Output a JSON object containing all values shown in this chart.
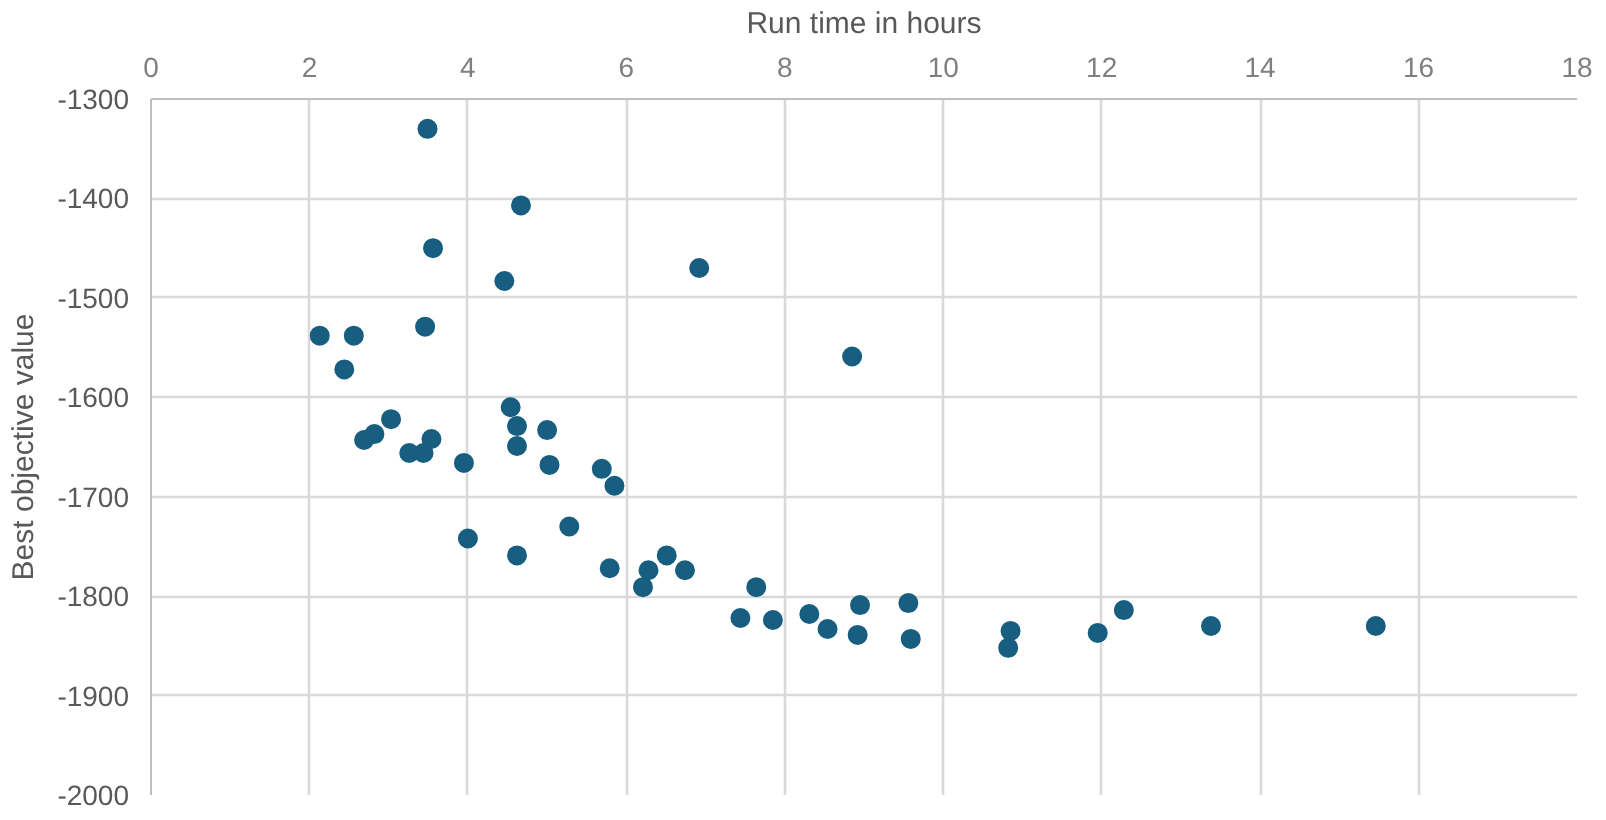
{
  "chart_data": {
    "type": "scatter",
    "xlabel": "Run time in hours",
    "ylabel": "Best objective value",
    "xlim": [
      0,
      18
    ],
    "xticks": [
      0,
      2,
      4,
      6,
      8,
      10,
      12,
      14,
      16,
      18
    ],
    "ylim": [
      -2000,
      -1300
    ],
    "yticks": [
      -2000,
      -1900,
      -1800,
      -1700,
      -1600,
      -1500,
      -1400,
      -1300
    ],
    "grid": true,
    "marker": "circle",
    "series": [
      {
        "color": "#175e81",
        "x": [
          3.49,
          4.67,
          3.56,
          4.46,
          6.92,
          3.46,
          2.13,
          2.56,
          2.44,
          8.85,
          4.54,
          4.62,
          5.0,
          4.62,
          3.03,
          2.82,
          2.69,
          3.54,
          3.26,
          3.44,
          3.95,
          5.03,
          5.62,
          5.69,
          5.85,
          4.0,
          4.62,
          5.28,
          5.79,
          6.21,
          6.28,
          6.51,
          6.74,
          7.44,
          7.64,
          7.85,
          8.31,
          8.54,
          8.95,
          8.92,
          9.56,
          9.59,
          10.85,
          10.82,
          11.95,
          12.28,
          13.38,
          15.46
        ],
        "values": [
          -1330,
          -1407,
          -1450,
          -1483,
          -1470,
          -1529,
          -1538,
          -1538,
          -1572,
          -1559,
          -1610,
          -1629,
          -1633,
          -1649,
          -1622,
          -1637,
          -1643,
          -1642,
          -1656,
          -1656,
          -1666,
          -1668,
          null,
          -1672,
          -1689,
          -1742,
          -1759,
          -1730,
          -1772,
          -1791,
          -1774,
          -1759,
          -1774,
          -1822,
          -1791,
          -1824,
          -1818,
          -1833,
          -1809,
          -1839,
          -1807,
          -1843,
          -1835,
          -1852,
          -1837,
          -1814,
          -1830,
          -1830
        ]
      }
    ]
  }
}
